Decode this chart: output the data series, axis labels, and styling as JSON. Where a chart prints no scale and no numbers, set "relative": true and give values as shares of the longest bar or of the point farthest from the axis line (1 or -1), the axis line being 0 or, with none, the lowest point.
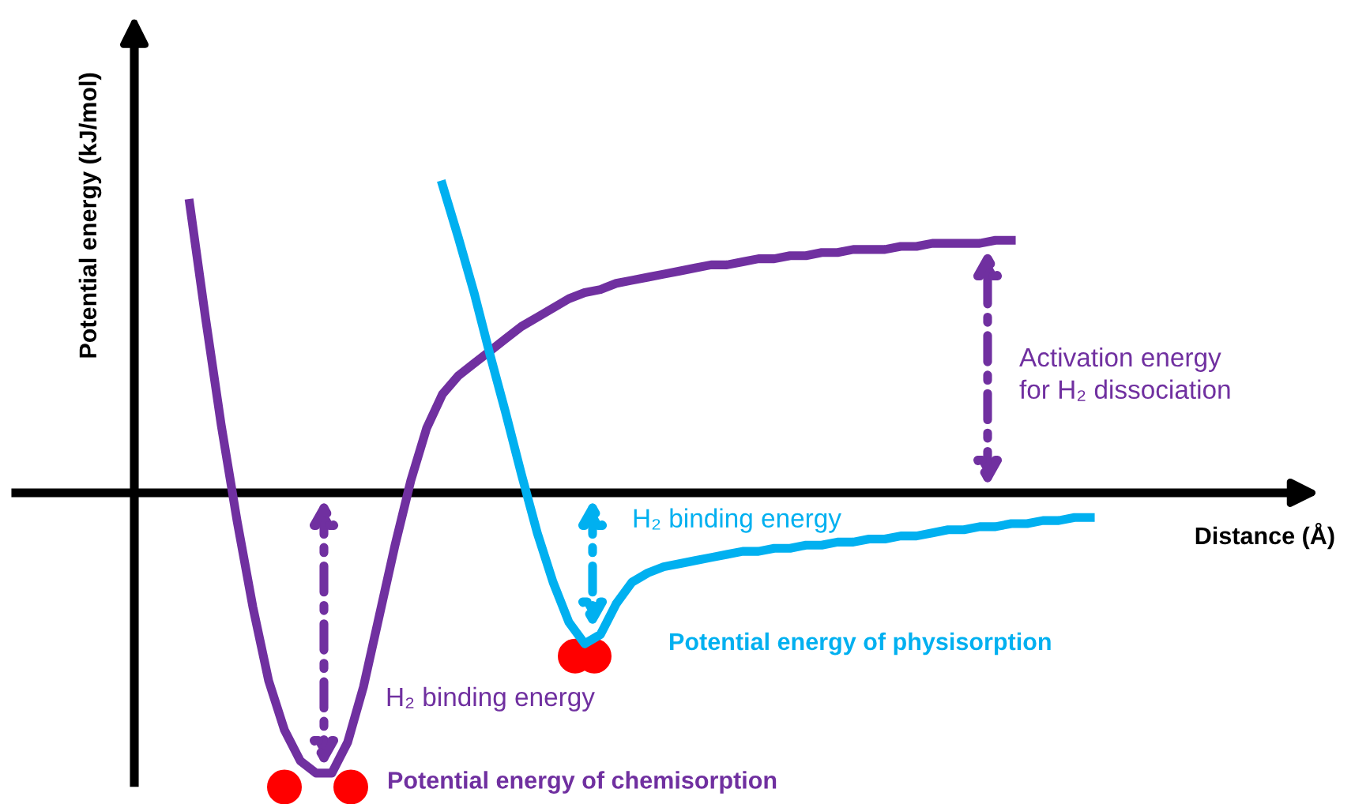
{
  "chart_data": {
    "type": "line",
    "relative": true,
    "xlabel": "Distance (Å)",
    "ylabel": "Potential energy (kJ/mol)",
    "tick_labels": false,
    "line_style": "solid",
    "categories": [
      null,
      null,
      null,
      null,
      null,
      null,
      null,
      null,
      null,
      null,
      null,
      null,
      null,
      null,
      null,
      null,
      null,
      null,
      null,
      null,
      null,
      null,
      null,
      null,
      null,
      null,
      null,
      null,
      null,
      null,
      null,
      null,
      null,
      null,
      null,
      null,
      null,
      null,
      null,
      null,
      null,
      null,
      null,
      null,
      null,
      null,
      null,
      null,
      null,
      null,
      null,
      null,
      null,
      null,
      null,
      null,
      null,
      null,
      null,
      null,
      null
    ],
    "series": [
      {
        "name": "Potential energy of chemisorption",
        "color": "#7030a0",
        "values": [
          null,
          null,
          0.94,
          0.57,
          0.22,
          -0.09,
          -0.37,
          -0.61,
          -0.77,
          -0.87,
          -0.91,
          -0.91,
          -0.81,
          -0.63,
          -0.4,
          -0.17,
          0.04,
          0.21,
          0.32,
          0.38,
          0.42,
          0.46,
          0.5,
          0.54,
          0.57,
          0.6,
          0.63,
          0.65,
          0.66,
          0.68,
          0.69,
          0.7,
          0.71,
          0.72,
          0.73,
          0.74,
          0.74,
          0.75,
          0.76,
          0.76,
          0.77,
          0.77,
          0.78,
          0.78,
          0.79,
          0.79,
          0.79,
          0.8,
          0.8,
          0.81,
          0.81,
          0.81,
          0.81,
          0.82,
          0.82,
          null,
          null,
          null,
          null,
          null,
          null
        ]
      },
      {
        "name": "Potential energy of physisorption",
        "color": "#00b0f0",
        "values": [
          null,
          null,
          null,
          null,
          null,
          null,
          null,
          null,
          null,
          null,
          null,
          null,
          null,
          null,
          null,
          null,
          null,
          null,
          1.0,
          0.83,
          0.65,
          0.45,
          0.26,
          0.06,
          -0.13,
          -0.29,
          -0.42,
          -0.49,
          -0.46,
          -0.36,
          -0.29,
          -0.26,
          -0.24,
          -0.23,
          -0.22,
          -0.21,
          -0.2,
          -0.19,
          -0.19,
          -0.18,
          -0.18,
          -0.17,
          -0.17,
          -0.16,
          -0.16,
          -0.15,
          -0.15,
          -0.14,
          -0.14,
          -0.13,
          -0.12,
          -0.12,
          -0.11,
          -0.11,
          -0.1,
          -0.1,
          -0.09,
          -0.09,
          -0.08,
          -0.08,
          null
        ]
      }
    ],
    "annotations": [
      "Activation energy\nfor H₂ dissociation",
      "H₂ binding energy",
      "H₂ binding energy"
    ]
  }
}
